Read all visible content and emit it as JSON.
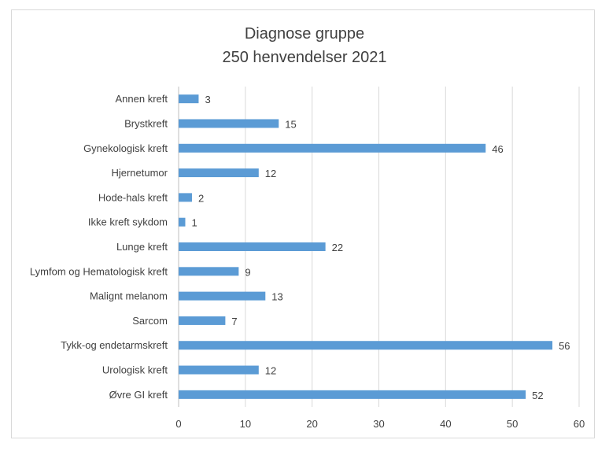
{
  "chart_data": {
    "type": "bar",
    "orientation": "horizontal",
    "title": [
      "Diagnose gruppe",
      "250 henvendelser  2021"
    ],
    "categories": [
      "Annen kreft",
      "Brystkreft",
      "Gynekologisk kreft",
      "Hjernetumor",
      "Hode-hals kreft",
      "Ikke kreft sykdom",
      "Lunge kreft",
      "Lymfom og Hematologisk kreft",
      "Malignt melanom",
      "Sarcom",
      "Tykk-og endetarmskreft",
      "Urologisk kreft",
      "Øvre GI kreft"
    ],
    "values": [
      3,
      15,
      46,
      12,
      2,
      1,
      22,
      9,
      13,
      7,
      56,
      12,
      52
    ],
    "xlim": [
      0,
      60
    ],
    "xticks": [
      0,
      10,
      20,
      30,
      40,
      50,
      60
    ],
    "grid": true,
    "data_labels": true,
    "colors": {
      "bar": "#5b9bd5",
      "grid": "#d9d9d9",
      "text": "#404040"
    }
  }
}
